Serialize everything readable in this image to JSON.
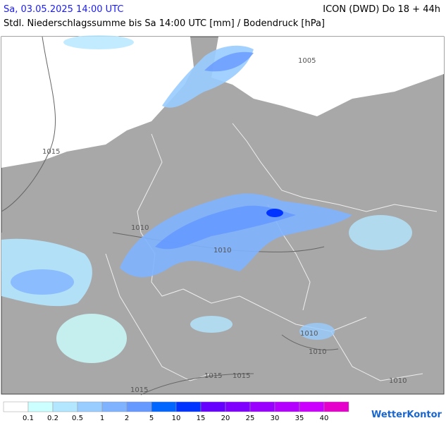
{
  "header": {
    "title": "Sa, 03.05.2025 14:00 UTC",
    "model": "ICON (DWD) Do 18 + 44h",
    "subtitle": "Stdl. Niederschlagssumme bis Sa 14:00 UTC [mm] / Bodendruck [hPa]"
  },
  "isobar_labels": [
    "1005",
    "1015",
    "1010",
    "1010",
    "1010",
    "1010",
    "1015",
    "1015",
    "1010",
    "1015"
  ],
  "legend": {
    "thresholds": [
      "0.1",
      "0.2",
      "0.5",
      "1",
      "2",
      "5",
      "10",
      "15",
      "20",
      "25",
      "30",
      "35",
      "40"
    ],
    "colors": [
      "#ffffff",
      "#ccffff",
      "#b3e6ff",
      "#99ccff",
      "#80b3ff",
      "#6699ff",
      "#0066ff",
      "#0033ff",
      "#6600ff",
      "#8000ff",
      "#9900ff",
      "#b300ff",
      "#cc00ff",
      "#e600cc"
    ]
  },
  "brand": "WetterKontor"
}
